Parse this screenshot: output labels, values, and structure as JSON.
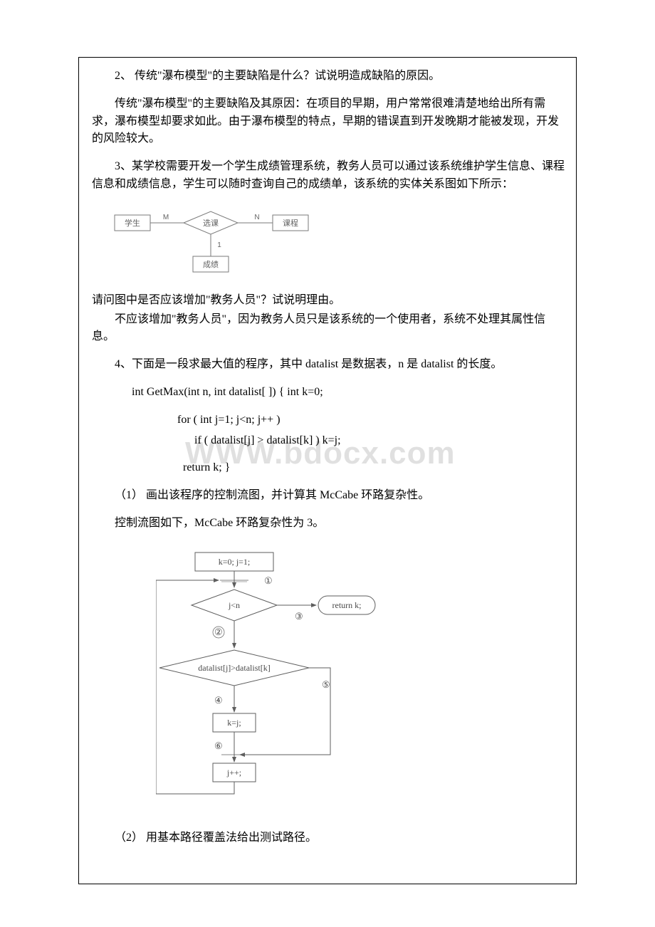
{
  "q2": {
    "title": "2、 传统\"瀑布模型\"的主要缺陷是什么？试说明造成缺陷的原因。",
    "answer": "传统\"瀑布模型\"的主要缺陷及其原因：在项目的早期，用户常常很难清楚地给出所有需求，瀑布模型却要求如此。由于瀑布模型的特点，早期的错误直到开发晚期才能被发现，开发的风险较大。"
  },
  "q3": {
    "title": "3、某学校需要开发一个学生成绩管理系统，教务人员可以通过该系统维护学生信息、课程信息和成绩信息，学生可以随时查询自己的成绩单，该系统的实体关系图如下所示：",
    "followup": "请问图中是否应该增加\"教务人员\"？试说明理由。",
    "answer": "不应该增加\"教务人员\"，因为教务人员只是该系统的一个使用者，系统不处理其属性信息。"
  },
  "er": {
    "entity_left": "学生",
    "relation": "选课",
    "entity_right": "课程",
    "attr": "成绩",
    "card_left": "M",
    "card_right": "N",
    "card_down": "1",
    "colors": {
      "stroke": "#7a7a7a",
      "text": "#636363",
      "bg": "#ffffff"
    },
    "font_size": 11
  },
  "q4": {
    "title": "4、下面是一段求最大值的程序，其中 datalist 是数据表，n 是 datalist 的长度。",
    "code1": "int GetMax(int n, int datalist[ ])  {       int k=0;",
    "code2": "for ( int j=1; j<n; j++ )",
    "code3": "if ( datalist[j] > datalist[k] ) k=j;",
    "code4": " return k; }",
    "sub1": "（1） 画出该程序的控制流图，并计算其 McCabe 环路复杂性。",
    "ans1": "控制流图如下，McCabe 环路复杂性为 3。",
    "sub2": "（2） 用基本路径覆盖法给出测试路径。"
  },
  "flowchart": {
    "nodes": {
      "init": "k=0;   j=1;",
      "cond1": "j<n",
      "return": "return k;",
      "cond2": "datalist[j]>datalist[k]",
      "assign": "k=j;",
      "inc": "j++;"
    },
    "labels": {
      "l1": "①",
      "l2": "②",
      "l3": "③",
      "l4": "④",
      "l5": "⑤",
      "l6": "⑥"
    },
    "colors": {
      "stroke": "#5e5e5e",
      "text": "#4a4a4a",
      "bg": "#ffffff",
      "arrow": "#5e5e5e"
    },
    "font_size": 12
  },
  "watermark": "WWW.bdocx.com"
}
